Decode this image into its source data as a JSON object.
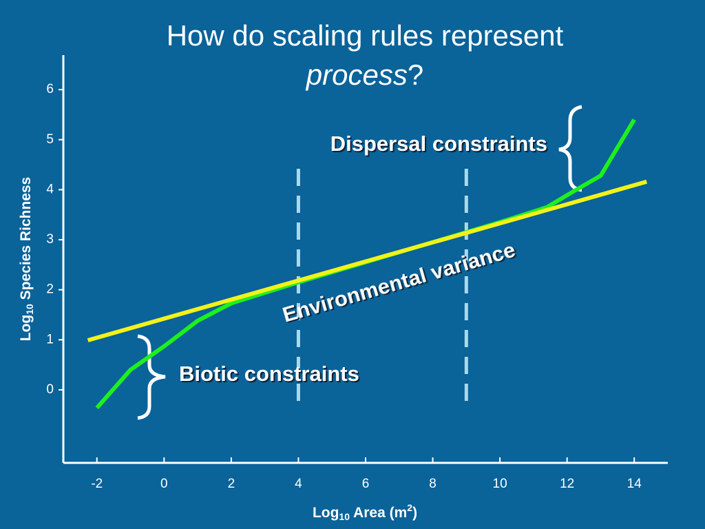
{
  "chart_data": {
    "type": "line",
    "title": "How do scaling rules represent",
    "title_emphasis": "process",
    "title_end": "?",
    "x_label": {
      "text": "Log",
      "sub": "10",
      "rest": " Area (m",
      "sup": "2",
      "end": ")"
    },
    "y_label": {
      "text": "Log",
      "sub": "10",
      "rest": " Species Richness"
    },
    "series": [
      {
        "color": "#1ef01e",
        "x": [
          -2,
          -1,
          0,
          1,
          2,
          4,
          6,
          8,
          10,
          11.4,
          12.2,
          13,
          14
        ],
        "values": [
          -0.36,
          0.4,
          0.87,
          1.38,
          1.73,
          2.15,
          2.55,
          2.95,
          3.35,
          3.65,
          3.97,
          4.28,
          5.4
        ]
      },
      {
        "color": "#f2f21a",
        "x": [
          -2.27,
          14.37
        ],
        "values": [
          0.99,
          4.16
        ]
      }
    ],
    "reference_lines_x": [
      4,
      9
    ],
    "annotations": [
      "Dispersal constraints",
      "Environmental variance",
      "Biotic constraints"
    ],
    "xlim": [
      -3,
      15
    ],
    "ylim": [
      -1.46,
      6.69
    ],
    "xticks": [
      -2,
      0,
      2,
      4,
      6,
      8,
      10,
      12,
      14
    ],
    "yticks": [
      0,
      1,
      2,
      3,
      4,
      5,
      6
    ]
  }
}
